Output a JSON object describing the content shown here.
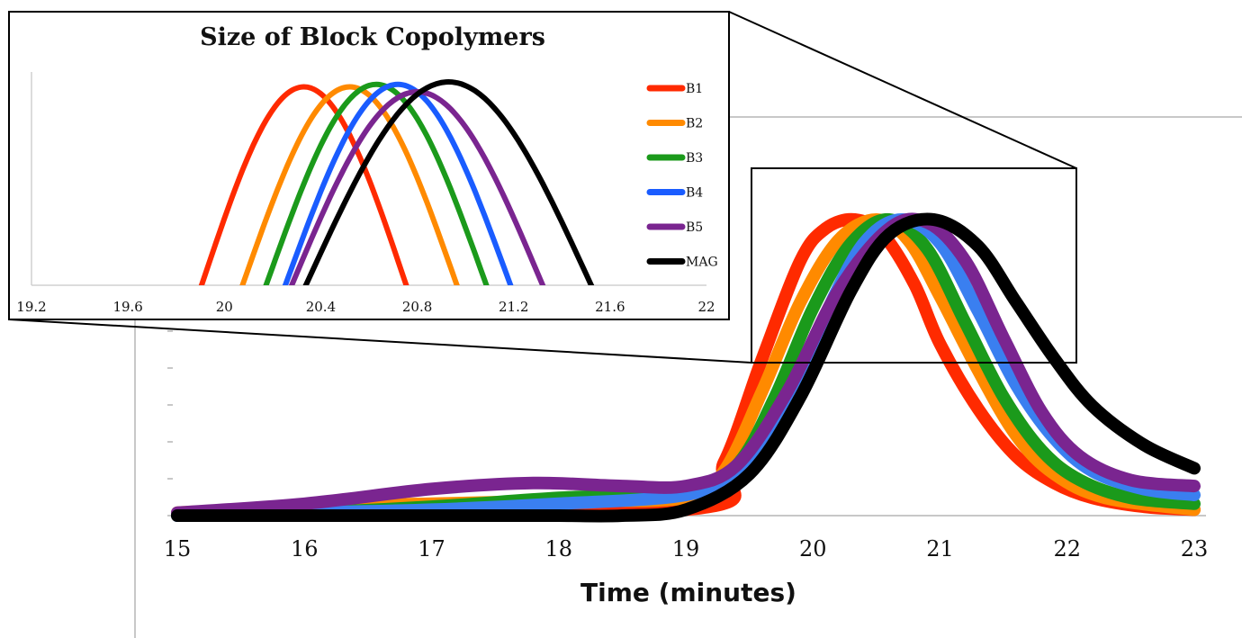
{
  "chart_data": [
    {
      "type": "line",
      "title": "",
      "xlabel": "Time (minutes)",
      "ylabel": "",
      "xlim": [
        15,
        23
      ],
      "ylim": [
        0,
        1.1
      ],
      "xticks": [
        15,
        16,
        17,
        18,
        19,
        20,
        21,
        22,
        23
      ],
      "grid": false,
      "legend": "none",
      "series": [
        {
          "name": "B1",
          "color": "#ff2a00",
          "x": [
            15,
            19,
            19.3,
            19.6,
            19.9,
            20.1,
            20.33,
            20.55,
            20.8,
            21.0,
            21.3,
            21.6,
            21.9,
            22.2,
            22.6,
            23
          ],
          "y": [
            0.0,
            0.02,
            0.18,
            0.53,
            0.86,
            0.97,
            1.0,
            0.95,
            0.78,
            0.58,
            0.36,
            0.2,
            0.11,
            0.06,
            0.03,
            0.02
          ]
        },
        {
          "name": "B2",
          "color": "#ff8a00",
          "x": [
            15,
            16,
            17,
            18,
            19,
            19.3,
            19.6,
            19.9,
            20.2,
            20.5,
            20.75,
            21.0,
            21.3,
            21.6,
            21.9,
            22.3,
            23
          ],
          "y": [
            0.01,
            0.03,
            0.04,
            0.05,
            0.06,
            0.15,
            0.42,
            0.72,
            0.93,
            1.0,
            0.93,
            0.74,
            0.49,
            0.27,
            0.14,
            0.06,
            0.02
          ]
        },
        {
          "name": "B3",
          "color": "#1b9a1b",
          "x": [
            15,
            16,
            17,
            18,
            19,
            19.4,
            19.7,
            20.0,
            20.3,
            20.6,
            20.9,
            21.2,
            21.5,
            21.8,
            22.1,
            22.5,
            23
          ],
          "y": [
            0.0,
            0.01,
            0.03,
            0.06,
            0.08,
            0.17,
            0.4,
            0.7,
            0.92,
            1.0,
            0.9,
            0.65,
            0.4,
            0.22,
            0.12,
            0.06,
            0.04
          ]
        },
        {
          "name": "B4",
          "color": "#3a7ff0",
          "x": [
            15,
            16,
            17,
            18,
            19,
            19.4,
            19.8,
            20.1,
            20.4,
            20.7,
            21.0,
            21.3,
            21.6,
            21.9,
            22.2,
            22.6,
            23
          ],
          "y": [
            0.0,
            0.01,
            0.02,
            0.04,
            0.07,
            0.15,
            0.38,
            0.68,
            0.92,
            1.0,
            0.92,
            0.69,
            0.44,
            0.26,
            0.15,
            0.09,
            0.07
          ]
        },
        {
          "name": "B5",
          "color": "#7a2590",
          "x": [
            15,
            16,
            17,
            17.8,
            18.5,
            19,
            19.4,
            19.8,
            20.2,
            20.6,
            20.9,
            21.2,
            21.5,
            21.8,
            22.1,
            22.5,
            23
          ],
          "y": [
            0.01,
            0.04,
            0.09,
            0.11,
            0.1,
            0.1,
            0.17,
            0.42,
            0.76,
            0.97,
            0.99,
            0.86,
            0.6,
            0.35,
            0.2,
            0.12,
            0.1
          ]
        },
        {
          "name": "MAG",
          "color": "#000000",
          "x": [
            15,
            16,
            17,
            17.5,
            18,
            18.5,
            19,
            19.5,
            19.9,
            20.3,
            20.6,
            20.95,
            21.3,
            21.6,
            21.9,
            22.2,
            22.6,
            23
          ],
          "y": [
            0.0,
            0.0,
            0.0,
            0.0,
            0.0,
            0.0,
            0.02,
            0.14,
            0.4,
            0.76,
            0.95,
            1.0,
            0.91,
            0.72,
            0.53,
            0.37,
            0.24,
            0.16
          ]
        }
      ]
    },
    {
      "type": "line",
      "title": "Size of Block Copolymers",
      "xlabel": "",
      "ylabel": "",
      "xlim": [
        19.2,
        22
      ],
      "ylim": [
        0.6,
        1.03
      ],
      "xticks": [
        "19.2",
        "19.6",
        "20",
        "20.4",
        "20.8",
        "21.2",
        "21.6",
        "22"
      ],
      "grid": false,
      "legend": "right",
      "series": [
        {
          "name": "B1",
          "color": "#ff2a00",
          "peak_x": 20.33,
          "peak_y": 1.0
        },
        {
          "name": "B2",
          "color": "#ff8a00",
          "peak_x": 20.52,
          "peak_y": 1.0
        },
        {
          "name": "B3",
          "color": "#1b9a1b",
          "peak_x": 20.63,
          "peak_y": 1.005
        },
        {
          "name": "B4",
          "color": "#1a5cff",
          "peak_x": 20.72,
          "peak_y": 1.005
        },
        {
          "name": "B5",
          "color": "#7a2590",
          "peak_x": 20.8,
          "peak_y": 0.99
        },
        {
          "name": "MAG",
          "color": "#000000",
          "peak_x": 20.93,
          "peak_y": 1.01
        }
      ]
    }
  ]
}
